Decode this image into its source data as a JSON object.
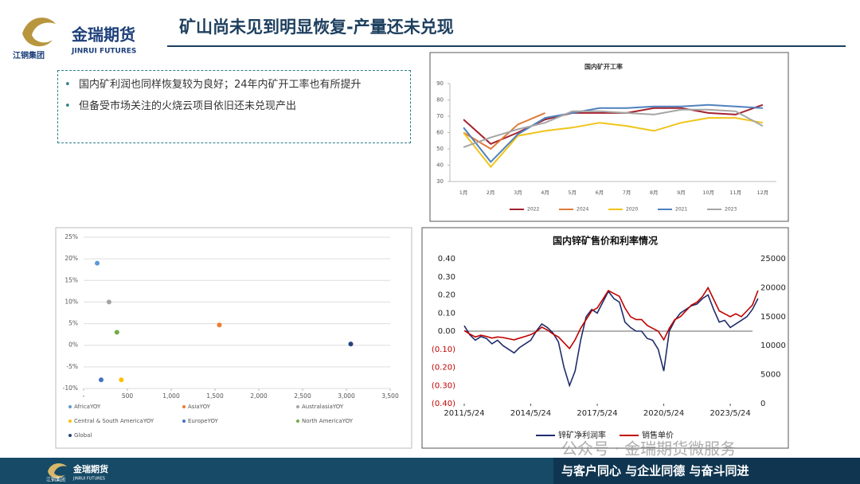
{
  "header": {
    "title": "矿山尚未见到明显恢复-产量还未兑现",
    "logo": {
      "name": "金瑞期货",
      "en": "JINRUI FUTURES",
      "group": "江铜集团"
    }
  },
  "bullets": [
    "国内矿利润也同样恢复较为良好；24年内矿开工率也有所提升",
    "但备受市场关注的火烧云项目依旧还未兑现产出"
  ],
  "chart_data": [
    {
      "type": "line",
      "title": "国内矿开工率",
      "categories": [
        "1月",
        "2月",
        "3月",
        "4月",
        "5月",
        "6月",
        "7月",
        "8月",
        "9月",
        "10月",
        "11月",
        "12月"
      ],
      "ylim": [
        30,
        90
      ],
      "yticks": [
        30,
        40,
        50,
        60,
        70,
        80,
        90
      ],
      "series": [
        {
          "name": "2022",
          "color": "#a3232f",
          "values": [
            68,
            53,
            60,
            68,
            72,
            72,
            72,
            75,
            75,
            72,
            71,
            77
          ]
        },
        {
          "name": "2024",
          "color": "#e07b39",
          "values": [
            60,
            50,
            65,
            72,
            null,
            null,
            null,
            null,
            null,
            null,
            null,
            null
          ]
        },
        {
          "name": "2020",
          "color": "#f0c419",
          "values": [
            60,
            39,
            58,
            61,
            63,
            66,
            64,
            61,
            66,
            69,
            69,
            66
          ]
        },
        {
          "name": "2021",
          "color": "#4f81bd",
          "values": [
            63,
            42,
            59,
            69,
            72,
            75,
            75,
            76,
            76,
            77,
            76,
            75
          ]
        },
        {
          "name": "2023",
          "color": "#a5a5a5",
          "values": [
            51,
            57,
            62,
            66,
            73,
            73,
            72,
            71,
            74,
            74,
            73,
            64
          ]
        }
      ]
    },
    {
      "type": "scatter",
      "xlim": [
        0,
        3500
      ],
      "xticks": [
        {
          "value": 0,
          "label": "-"
        },
        500,
        {
          "value": 1000,
          "label": "1,000"
        },
        {
          "value": 1500,
          "label": "1,500"
        },
        {
          "value": 2000,
          "label": "2,000"
        },
        {
          "value": 2500,
          "label": "2,500"
        },
        {
          "value": 3000,
          "label": "3,000"
        },
        {
          "value": 3500,
          "label": "3,500"
        }
      ],
      "ylim": [
        -10,
        25
      ],
      "yticks": [
        {
          "value": -10,
          "label": "-10%"
        },
        {
          "value": -5,
          "label": "-5%"
        },
        {
          "value": 0,
          "label": "0%"
        },
        {
          "value": 5,
          "label": "5%"
        },
        {
          "value": 10,
          "label": "10%"
        },
        {
          "value": 15,
          "label": "15%"
        },
        {
          "value": 20,
          "label": "20%"
        },
        {
          "value": 25,
          "label": "25%"
        }
      ],
      "grid": true,
      "series": [
        {
          "name": "AfricaYOY",
          "color": "#5b9bd5",
          "x": [
            155
          ],
          "values": [
            19
          ]
        },
        {
          "name": "AsiaYOY",
          "color": "#ed7d31",
          "x": [
            1550
          ],
          "values": [
            4.7
          ]
        },
        {
          "name": "AustralasiaYOY",
          "color": "#a5a5a5",
          "x": [
            290
          ],
          "values": [
            10
          ]
        },
        {
          "name": "Central & South AmericaYOY",
          "color": "#ffc000",
          "x": [
            430
          ],
          "values": [
            -8
          ]
        },
        {
          "name": "EuropeYOY",
          "color": "#4472c4",
          "x": [
            200
          ],
          "values": [
            -8
          ]
        },
        {
          "name": "North AmericaYOY",
          "color": "#70ad47",
          "x": [
            380
          ],
          "values": [
            3
          ]
        },
        {
          "name": "Global",
          "color": "#264478",
          "x": [
            3050
          ],
          "values": [
            0.3
          ]
        }
      ]
    },
    {
      "type": "dual-line",
      "title": "国内锌矿售价和利率情况",
      "x": [
        "2011/5/24",
        "2011/8/24",
        "2011/11/24",
        "2012/2/24",
        "2012/5/24",
        "2012/8/24",
        "2012/11/24",
        "2013/2/24",
        "2013/5/24",
        "2013/8/24",
        "2013/11/24",
        "2014/2/24",
        "2014/5/24",
        "2014/8/24",
        "2014/11/24",
        "2015/2/24",
        "2015/5/24",
        "2015/8/24",
        "2015/11/24",
        "2016/2/24",
        "2016/5/24",
        "2016/8/24",
        "2016/11/24",
        "2017/2/24",
        "2017/5/24",
        "2017/8/24",
        "2017/11/24",
        "2018/2/24",
        "2018/5/24",
        "2018/8/24",
        "2018/11/24",
        "2019/2/24",
        "2019/5/24",
        "2019/8/24",
        "2019/11/24",
        "2020/2/24",
        "2020/5/24",
        "2020/8/24",
        "2020/11/24",
        "2021/2/24",
        "2021/5/24",
        "2021/8/24",
        "2021/11/24",
        "2022/2/24",
        "2022/5/24",
        "2022/8/24",
        "2022/11/24",
        "2023/2/24",
        "2023/5/24",
        "2023/8/24",
        "2023/11/24",
        "2024/2/24",
        "2024/5/24",
        "2024/8/24"
      ],
      "xticks": [
        "2011/5/24",
        "2014/5/24",
        "2017/5/24",
        "2020/5/24",
        "2023/5/24"
      ],
      "ylim": [
        -0.4,
        0.4
      ],
      "yticks": [
        {
          "value": -0.4,
          "label": "(0.40)"
        },
        {
          "value": -0.3,
          "label": "(0.30)"
        },
        {
          "value": -0.2,
          "label": "(0.20)"
        },
        {
          "value": -0.1,
          "label": "(0.10)"
        },
        {
          "value": 0,
          "label": "0.00"
        },
        {
          "value": 0.1,
          "label": "0.10"
        },
        {
          "value": 0.2,
          "label": "0.20"
        },
        {
          "value": 0.3,
          "label": "0.30"
        },
        {
          "value": 0.4,
          "label": "0.40"
        }
      ],
      "y2lim": [
        0,
        25000
      ],
      "y2ticks": [
        0,
        5000,
        10000,
        15000,
        20000,
        25000
      ],
      "series": [
        {
          "name": "锌矿净利润率",
          "color": "#1f2d6b",
          "values": [
            0.03,
            -0.02,
            -0.05,
            -0.03,
            -0.04,
            -0.07,
            -0.05,
            -0.08,
            -0.1,
            -0.12,
            -0.09,
            -0.07,
            -0.05,
            0,
            0.04,
            0.02,
            -0.01,
            -0.06,
            -0.2,
            -0.3,
            -0.22,
            -0.05,
            0.08,
            0.12,
            0.1,
            0.16,
            0.22,
            0.18,
            0.16,
            0.05,
            0.02,
            0,
            0,
            -0.04,
            -0.05,
            -0.1,
            -0.22,
            0,
            0.06,
            0.1,
            0.12,
            0.14,
            0.15,
            0.18,
            0.2,
            0.12,
            0.05,
            0.06,
            0.02,
            0.04,
            0.06,
            0.08,
            0.12,
            0.18
          ]
        },
        {
          "name": "销售单价",
          "color": "#c00000",
          "axis": "y2",
          "values": [
            12600,
            12000,
            11500,
            11800,
            11600,
            11300,
            11500,
            11400,
            11200,
            11000,
            11300,
            11600,
            11900,
            12400,
            13200,
            12700,
            12000,
            11500,
            10500,
            9500,
            11000,
            13000,
            14500,
            16000,
            16500,
            18000,
            19500,
            19000,
            18500,
            16500,
            15000,
            14500,
            14500,
            13500,
            13000,
            12500,
            11000,
            13000,
            14500,
            15000,
            16000,
            17000,
            17500,
            18500,
            20000,
            18000,
            16000,
            15500,
            15000,
            15500,
            15000,
            16000,
            17000,
            19500
          ]
        }
      ]
    }
  ],
  "footer": {
    "slogan": "与客户同心 与企业同德 与奋斗同进",
    "watermark": "公众号 · 金瑞期货微服务"
  }
}
